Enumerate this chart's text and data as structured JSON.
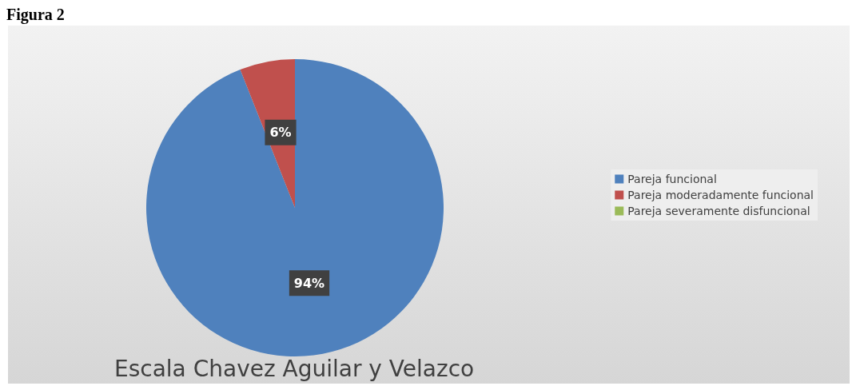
{
  "chart_data": {
    "type": "pie",
    "title": "Escala Chavez Aguilar y Velazco",
    "annotations": [
      "Figura 2"
    ],
    "categories": [
      "Pareja funcional",
      "Pareja moderadamente funcional",
      "Pareja severamente disfuncional"
    ],
    "values": [
      94,
      6,
      0
    ],
    "colors": [
      "#4f81bd",
      "#c0504d",
      "#9bbb59"
    ],
    "value_labels": [
      "94%",
      "6%",
      null
    ],
    "legend": "right"
  }
}
